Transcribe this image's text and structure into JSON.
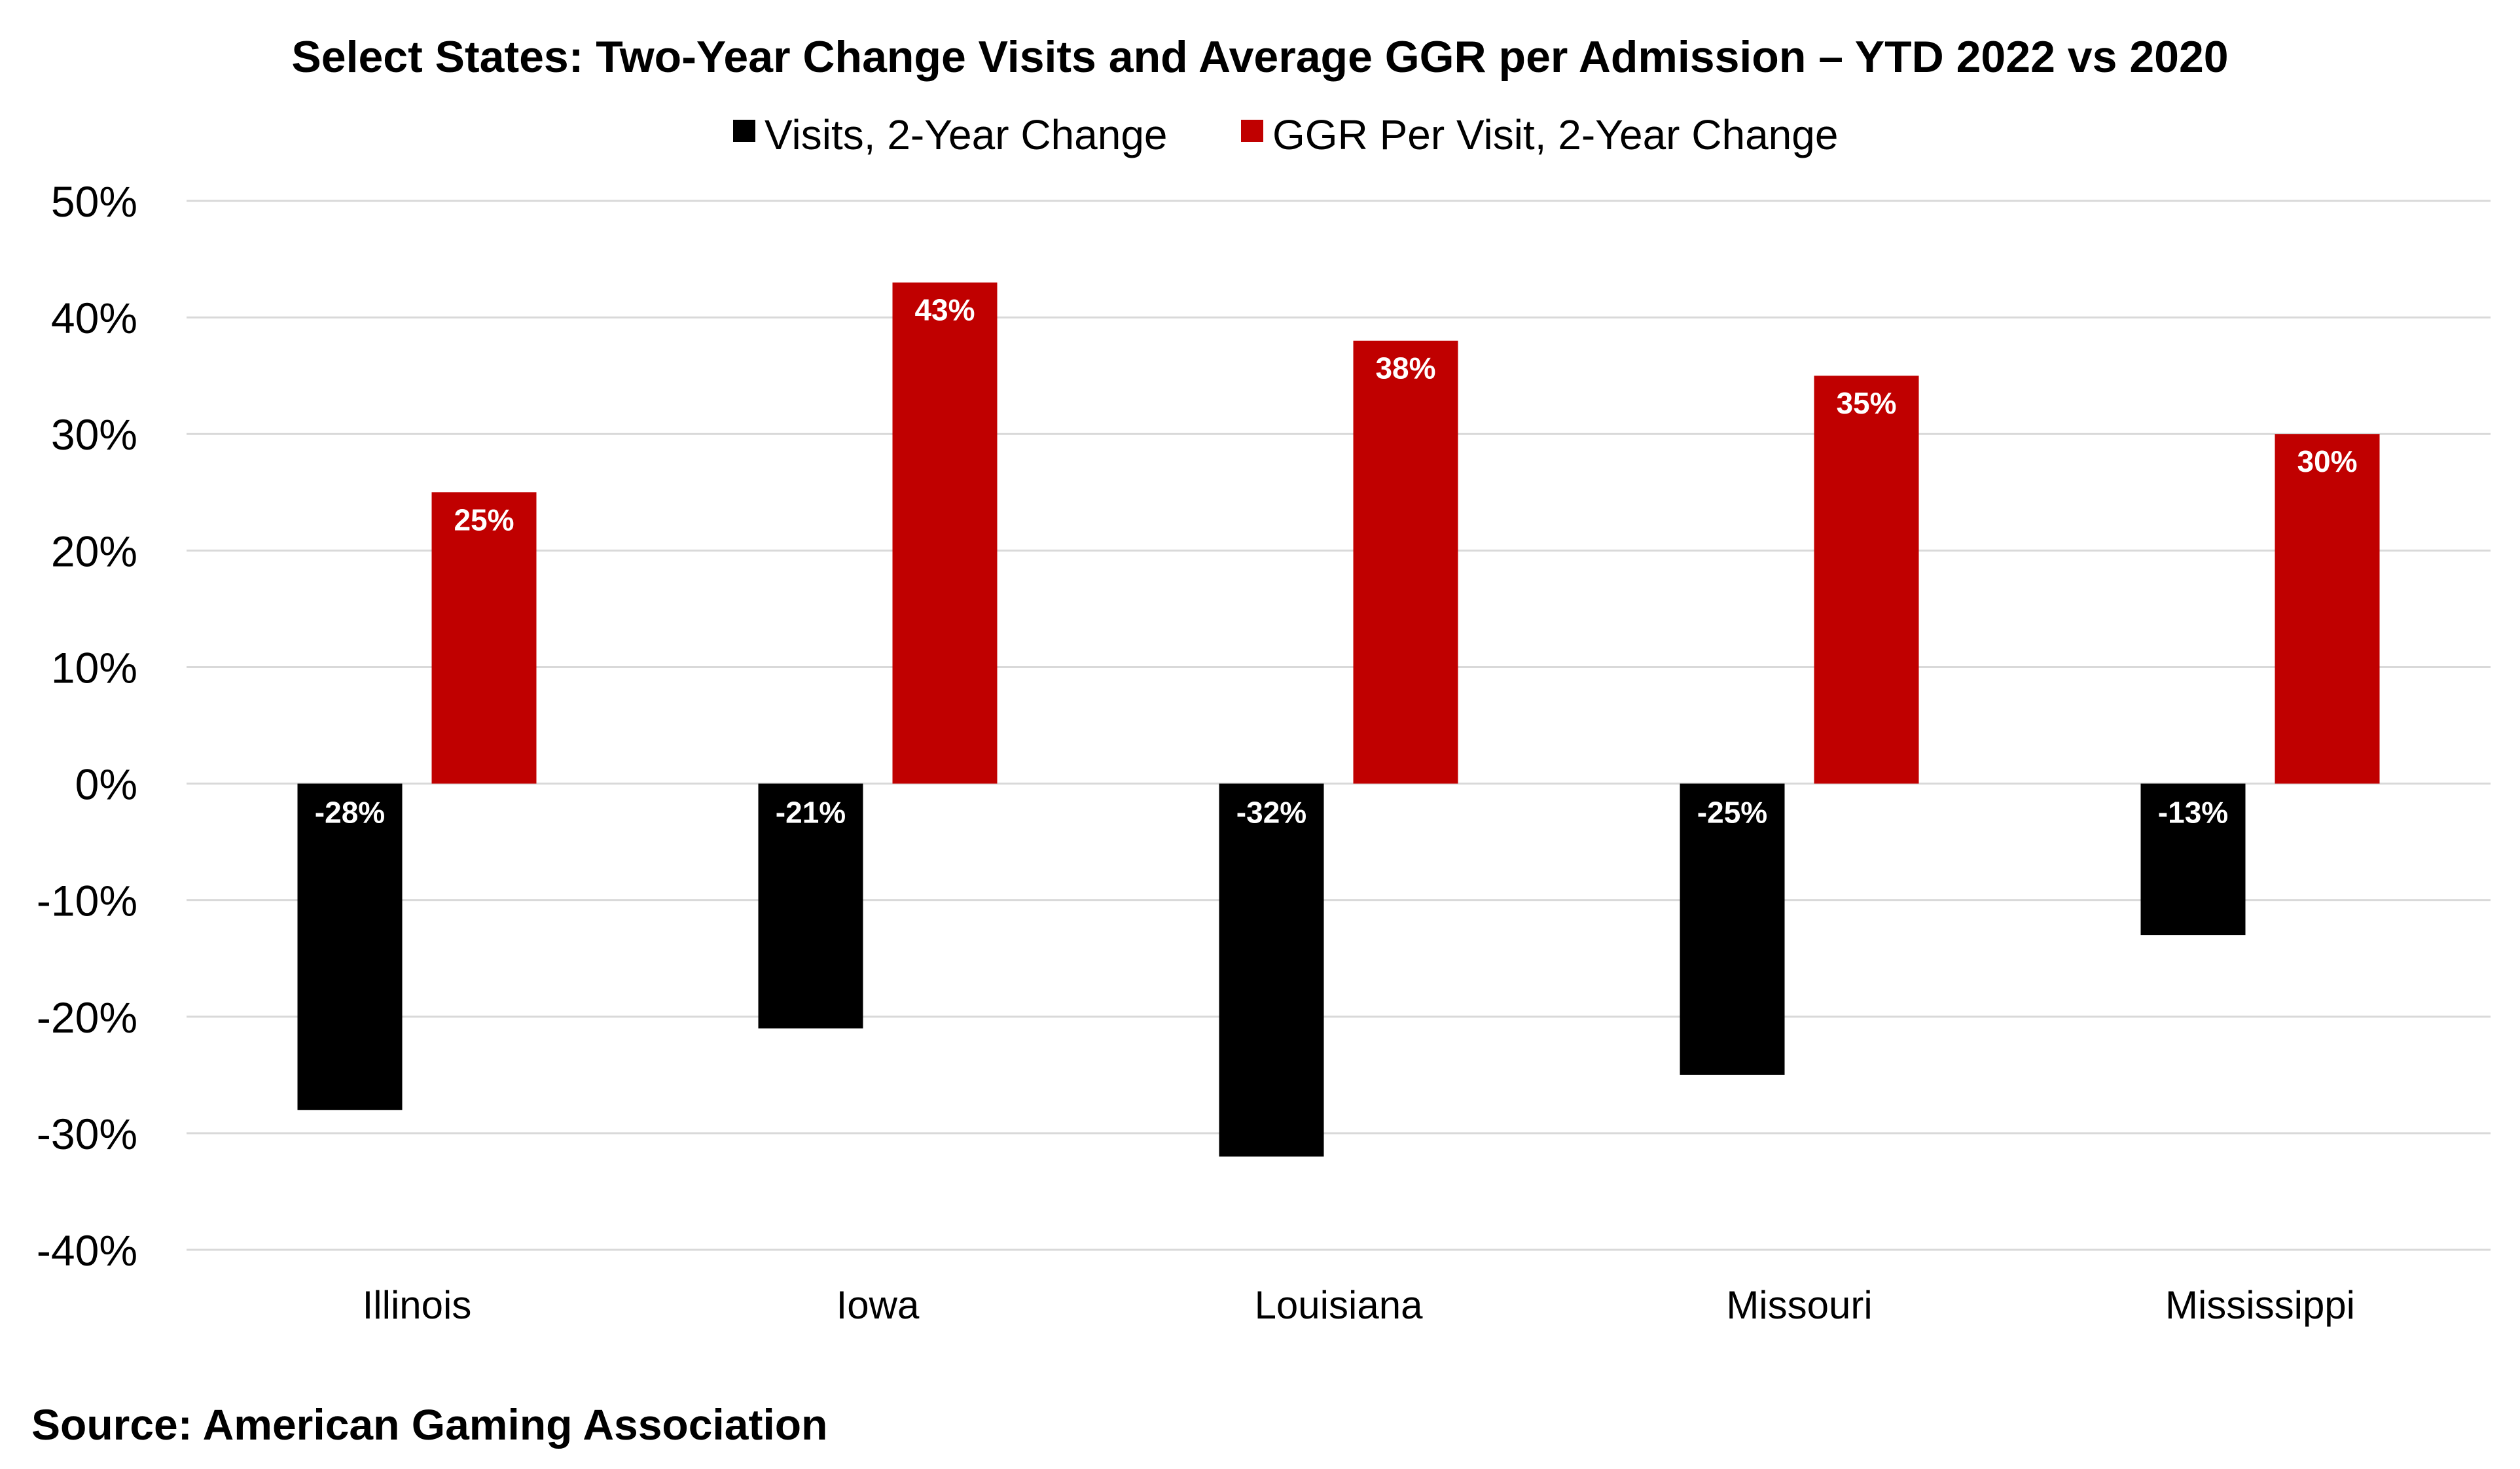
{
  "source_note": "Source: American Gaming Association",
  "colors": {
    "visits": "#000000",
    "ggr": "#c00000",
    "grid": "#d9d9d9"
  },
  "chart_data": {
    "type": "bar",
    "title": "Select States: Two-Year Change Visits and Average GGR per Admission – YTD 2022 vs 2020",
    "categories": [
      "Illinois",
      "Iowa",
      "Louisiana",
      "Missouri",
      "Mississippi"
    ],
    "series": [
      {
        "name": "Visits, 2-Year Change",
        "values": [
          -28,
          -21,
          -32,
          -25,
          -13
        ],
        "labels": [
          "-28%",
          "-21%",
          "-32%",
          "-25%",
          "-13%"
        ]
      },
      {
        "name": "GGR Per Visit, 2-Year Change",
        "values": [
          25,
          43,
          38,
          35,
          30
        ],
        "labels": [
          "25%",
          "43%",
          "38%",
          "35%",
          "30%"
        ]
      }
    ],
    "ylim": [
      -40,
      50
    ],
    "yticks": [
      50,
      40,
      30,
      20,
      10,
      0,
      -10,
      -20,
      -30,
      -40
    ],
    "ytick_labels": [
      "50%",
      "40%",
      "30%",
      "20%",
      "10%",
      "0%",
      "-10%",
      "-20%",
      "-30%",
      "-40%"
    ],
    "grid": true,
    "legend_position": "top-center"
  }
}
